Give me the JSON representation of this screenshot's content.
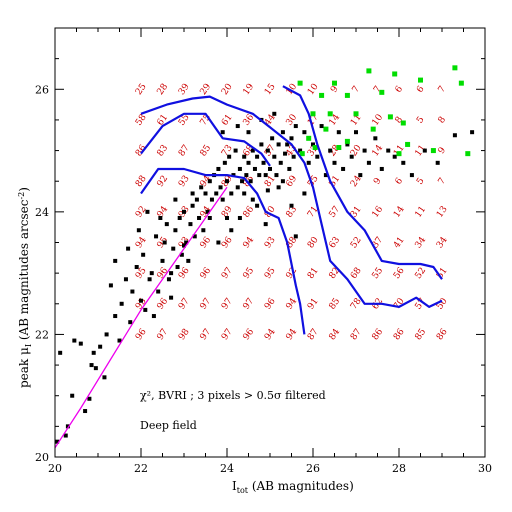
{
  "chart_data": {
    "type": "scatter",
    "xlabel": "I_tot (AB magnitudes)",
    "xlabel_main": "I",
    "xlabel_sub": "tot",
    "xlabel_rest": " (AB magnitudes)",
    "ylabel": "peak μ_I (AB magnitudes arcsec^-2)",
    "ylabel_prefix": "peak μ",
    "ylabel_sub": "I",
    "ylabel_mid": "  (AB magnitudes arcsec",
    "ylabel_sup": "-2",
    "ylabel_end": ")",
    "xlim": [
      20,
      30
    ],
    "ylim": [
      20,
      27
    ],
    "xticks": [
      20,
      22,
      24,
      26,
      28,
      30
    ],
    "yticks": [
      20,
      22,
      24,
      26
    ],
    "annotation_line1": "χ², BVRI ; 3 pixels > 0.5σ filtered",
    "annotation_line2": "Deep field",
    "colors": {
      "points": "#000000",
      "green_points": "#00dd00",
      "contours": "#1010e0",
      "magenta_line": "#ee00ee",
      "grid_numbers": "#cc0000"
    },
    "magenta_line": [
      [
        20.0,
        20.15
      ],
      [
        20.6,
        20.8
      ],
      [
        21.3,
        21.6
      ],
      [
        22.0,
        22.4
      ],
      [
        22.7,
        23.1
      ],
      [
        23.4,
        23.8
      ],
      [
        24.0,
        24.4
      ]
    ],
    "contours": [
      [
        [
          22.0,
          24.95
        ],
        [
          22.5,
          25.4
        ],
        [
          23.0,
          25.6
        ],
        [
          23.5,
          25.6
        ],
        [
          23.9,
          25.2
        ],
        [
          24.4,
          25.15
        ],
        [
          24.8,
          24.95
        ],
        [
          25.0,
          24.75
        ]
      ],
      [
        [
          22.0,
          25.6
        ],
        [
          22.6,
          25.75
        ],
        [
          23.2,
          25.85
        ],
        [
          23.6,
          25.88
        ],
        [
          24.0,
          25.75
        ],
        [
          24.6,
          25.6
        ],
        [
          25.0,
          25.38
        ],
        [
          25.5,
          25.1
        ],
        [
          25.8,
          24.8
        ],
        [
          26.0,
          24.4
        ],
        [
          26.2,
          23.8
        ],
        [
          26.4,
          23.2
        ],
        [
          26.8,
          22.9
        ],
        [
          27.2,
          22.5
        ],
        [
          27.6,
          22.5
        ],
        [
          28.0,
          22.45
        ],
        [
          28.4,
          22.6
        ],
        [
          28.7,
          22.45
        ],
        [
          29.0,
          22.55
        ]
      ],
      [
        [
          22.0,
          24.3
        ],
        [
          22.4,
          24.7
        ],
        [
          23.0,
          24.7
        ],
        [
          23.5,
          24.6
        ],
        [
          24.0,
          24.6
        ],
        [
          24.4,
          24.55
        ],
        [
          24.7,
          24.3
        ],
        [
          24.9,
          24.0
        ],
        [
          25.2,
          23.9
        ],
        [
          25.4,
          23.5
        ],
        [
          25.6,
          22.8
        ],
        [
          25.7,
          22.5
        ],
        [
          25.8,
          22.0
        ]
      ],
      [
        [
          25.3,
          26.05
        ],
        [
          25.7,
          25.9
        ],
        [
          25.9,
          25.6
        ],
        [
          26.1,
          25.1
        ],
        [
          26.4,
          24.5
        ],
        [
          26.8,
          24.0
        ],
        [
          27.2,
          23.7
        ],
        [
          27.6,
          23.2
        ],
        [
          28.0,
          23.15
        ],
        [
          28.5,
          23.15
        ],
        [
          28.8,
          23.1
        ],
        [
          29.0,
          22.9
        ]
      ]
    ],
    "grid_x": [
      22.0,
      22.5,
      23.0,
      23.5,
      24.0,
      24.5,
      25.0,
      25.5,
      26.0,
      26.5,
      27.0,
      27.5,
      28.0,
      28.5,
      29.0
    ],
    "grid_y": [
      26.0,
      25.5,
      25.0,
      24.5,
      24.0,
      23.5,
      23.0,
      22.5,
      22.0
    ],
    "grid_values": [
      [
        "25",
        "28",
        "39",
        "29",
        "20",
        "19",
        "15",
        "10",
        "10",
        "9",
        "7",
        "7",
        "6",
        "6",
        "7"
      ],
      [
        "58",
        "61",
        "55",
        "75",
        "61",
        "36",
        "44",
        "30",
        "17",
        "14",
        "11",
        "10",
        "8",
        "5",
        "8"
      ],
      [
        "86",
        "83",
        "87",
        "85",
        "73",
        "68",
        "57",
        "43",
        "32",
        "28",
        "20",
        "14",
        "11",
        "11",
        "9"
      ],
      [
        "88",
        "92",
        "93",
        "94",
        "89",
        "85",
        "81",
        "69",
        "55",
        "51",
        "24",
        "9",
        "6",
        "5",
        "7"
      ],
      [
        "92",
        "94",
        "93",
        "94",
        "89",
        "86",
        "80",
        "83",
        "71",
        "57",
        "31",
        "16",
        "14",
        "11",
        "13"
      ],
      [
        "94",
        "95",
        "93",
        "96",
        "96",
        "94",
        "93",
        "88",
        "80",
        "63",
        "52",
        "37",
        "41",
        "34",
        "34"
      ],
      [
        "95",
        "96",
        "96",
        "96",
        "97",
        "95",
        "95",
        "92",
        "81",
        "82",
        "68",
        "55",
        "56",
        "52",
        "51"
      ],
      [
        "95",
        "96",
        "97",
        "97",
        "97",
        "97",
        "96",
        "94",
        "91",
        "85",
        "78",
        "62",
        "70",
        "57",
        "50"
      ],
      [
        "96",
        "97",
        "98",
        "97",
        "97",
        "96",
        "94",
        "94",
        "87",
        "84",
        "87",
        "86",
        "86",
        "85",
        "86"
      ]
    ],
    "green_points": [
      [
        25.7,
        26.1
      ],
      [
        26.2,
        25.9
      ],
      [
        26.5,
        26.1
      ],
      [
        26.8,
        25.9
      ],
      [
        27.3,
        26.3
      ],
      [
        27.6,
        25.95
      ],
      [
        27.9,
        26.25
      ],
      [
        28.5,
        26.15
      ],
      [
        29.3,
        26.35
      ],
      [
        29.45,
        26.1
      ],
      [
        29.6,
        24.95
      ],
      [
        28.1,
        25.45
      ],
      [
        27.4,
        25.35
      ],
      [
        26.8,
        25.15
      ],
      [
        26.3,
        25.35
      ],
      [
        26.0,
        25.6
      ],
      [
        25.9,
        25.2
      ],
      [
        26.6,
        25.05
      ],
      [
        27.0,
        25.6
      ],
      [
        27.8,
        25.55
      ],
      [
        28.2,
        25.1
      ],
      [
        28.8,
        25.0
      ],
      [
        25.75,
        24.95
      ],
      [
        26.05,
        25.05
      ],
      [
        28.0,
        24.95
      ],
      [
        26.4,
        25.6
      ]
    ],
    "black_points": [
      [
        20.05,
        20.25
      ],
      [
        20.12,
        21.7
      ],
      [
        20.25,
        20.35
      ],
      [
        20.3,
        20.5
      ],
      [
        20.4,
        21.0
      ],
      [
        20.45,
        21.9
      ],
      [
        20.6,
        21.85
      ],
      [
        20.7,
        20.75
      ],
      [
        20.8,
        20.95
      ],
      [
        20.85,
        21.5
      ],
      [
        20.9,
        21.7
      ],
      [
        20.95,
        21.45
      ],
      [
        21.05,
        21.8
      ],
      [
        21.15,
        21.3
      ],
      [
        21.2,
        22.0
      ],
      [
        21.3,
        22.8
      ],
      [
        21.4,
        22.3
      ],
      [
        21.5,
        21.9
      ],
      [
        21.55,
        22.5
      ],
      [
        21.65,
        22.9
      ],
      [
        21.75,
        22.2
      ],
      [
        21.8,
        22.7
      ],
      [
        21.9,
        23.1
      ],
      [
        22.0,
        22.55
      ],
      [
        22.05,
        23.3
      ],
      [
        22.1,
        22.4
      ],
      [
        22.2,
        22.9
      ],
      [
        22.25,
        23.0
      ],
      [
        22.35,
        23.6
      ],
      [
        22.4,
        22.7
      ],
      [
        22.5,
        23.2
      ],
      [
        22.55,
        23.5
      ],
      [
        22.6,
        23.8
      ],
      [
        22.65,
        22.9
      ],
      [
        22.7,
        23.0
      ],
      [
        22.75,
        23.4
      ],
      [
        22.8,
        23.7
      ],
      [
        22.85,
        23.1
      ],
      [
        22.9,
        23.9
      ],
      [
        22.95,
        23.3
      ],
      [
        23.0,
        24.0
      ],
      [
        23.05,
        23.5
      ],
      [
        23.1,
        23.2
      ],
      [
        23.15,
        23.8
      ],
      [
        23.2,
        24.1
      ],
      [
        23.25,
        23.6
      ],
      [
        23.3,
        24.2
      ],
      [
        23.35,
        23.9
      ],
      [
        23.4,
        24.4
      ],
      [
        23.45,
        23.7
      ],
      [
        23.5,
        24.3
      ],
      [
        23.55,
        24.0
      ],
      [
        23.6,
        24.5
      ],
      [
        23.65,
        24.2
      ],
      [
        23.7,
        24.6
      ],
      [
        23.75,
        24.3
      ],
      [
        23.8,
        24.7
      ],
      [
        23.85,
        24.4
      ],
      [
        23.9,
        24.2
      ],
      [
        23.95,
        24.8
      ],
      [
        24.0,
        24.5
      ],
      [
        24.05,
        24.9
      ],
      [
        24.1,
        24.3
      ],
      [
        24.15,
        24.6
      ],
      [
        24.2,
        25.0
      ],
      [
        24.25,
        24.4
      ],
      [
        24.3,
        24.7
      ],
      [
        24.35,
        24.5
      ],
      [
        24.4,
        24.9
      ],
      [
        24.45,
        24.6
      ],
      [
        24.5,
        24.8
      ],
      [
        24.55,
        24.5
      ],
      [
        24.6,
        25.0
      ],
      [
        24.65,
        24.7
      ],
      [
        24.7,
        24.9
      ],
      [
        24.75,
        24.6
      ],
      [
        24.8,
        25.1
      ],
      [
        24.85,
        24.8
      ],
      [
        24.9,
        24.6
      ],
      [
        24.95,
        25.0
      ],
      [
        25.0,
        24.7
      ],
      [
        25.05,
        25.2
      ],
      [
        25.1,
        24.9
      ],
      [
        25.15,
        24.6
      ],
      [
        25.2,
        25.1
      ],
      [
        25.25,
        24.8
      ],
      [
        25.3,
        25.3
      ],
      [
        25.35,
        24.95
      ],
      [
        25.4,
        25.1
      ],
      [
        25.45,
        24.7
      ],
      [
        25.5,
        25.2
      ],
      [
        25.55,
        24.9
      ],
      [
        25.6,
        25.4
      ],
      [
        25.7,
        25.0
      ],
      [
        25.8,
        25.3
      ],
      [
        25.9,
        24.8
      ],
      [
        26.0,
        25.1
      ],
      [
        26.1,
        24.9
      ],
      [
        26.2,
        25.4
      ],
      [
        26.3,
        24.6
      ],
      [
        26.4,
        25.0
      ],
      [
        26.5,
        24.8
      ],
      [
        26.6,
        25.3
      ],
      [
        26.7,
        24.7
      ],
      [
        26.8,
        25.1
      ],
      [
        26.9,
        24.9
      ],
      [
        27.0,
        25.3
      ],
      [
        27.1,
        24.6
      ],
      [
        27.2,
        25.0
      ],
      [
        27.3,
        24.8
      ],
      [
        27.45,
        25.2
      ],
      [
        27.6,
        24.7
      ],
      [
        27.75,
        25.0
      ],
      [
        27.9,
        24.9
      ],
      [
        28.1,
        24.8
      ],
      [
        28.3,
        24.6
      ],
      [
        28.6,
        25.0
      ],
      [
        28.9,
        24.8
      ],
      [
        29.3,
        25.25
      ],
      [
        29.7,
        25.3
      ],
      [
        24.3,
        23.9
      ],
      [
        24.6,
        24.2
      ],
      [
        24.9,
        23.8
      ],
      [
        25.2,
        24.4
      ],
      [
        24.1,
        23.7
      ],
      [
        23.8,
        23.5
      ],
      [
        23.6,
        23.9
      ],
      [
        25.5,
        24.1
      ],
      [
        24.7,
        24.1
      ],
      [
        24.4,
        24.3
      ],
      [
        22.3,
        22.3
      ],
      [
        21.95,
        23.7
      ],
      [
        22.15,
        24.0
      ],
      [
        22.45,
        23.9
      ],
      [
        23.0,
        23.45
      ],
      [
        24.5,
        25.3
      ],
      [
        24.8,
        25.5
      ],
      [
        25.1,
        25.6
      ],
      [
        23.9,
        25.3
      ],
      [
        24.25,
        25.4
      ],
      [
        25.6,
        23.6
      ],
      [
        25.8,
        24.3
      ],
      [
        23.2,
        24.3
      ],
      [
        22.8,
        24.2
      ],
      [
        21.7,
        23.4
      ],
      [
        21.4,
        23.2
      ],
      [
        22.7,
        22.6
      ],
      [
        24.0,
        23.9
      ],
      [
        25.3,
        24.5
      ],
      [
        24.95,
        24.35
      ]
    ]
  }
}
